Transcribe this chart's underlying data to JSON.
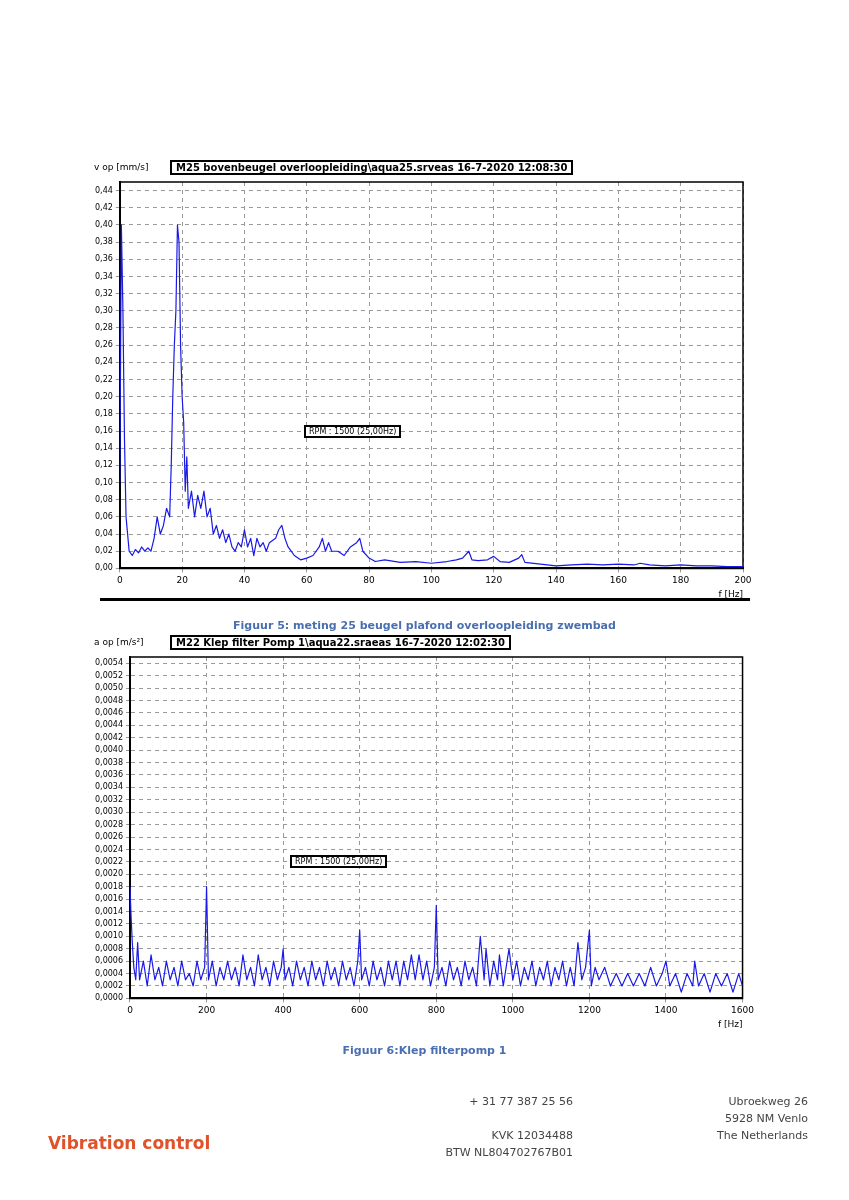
{
  "chart_data": [
    {
      "type": "line",
      "title": "M25 bovenbeugel overloopleiding\\aqua25.srveas 16-7-2020 12:08:30",
      "xlabel": "f [Hz]",
      "ylabel": "v op [mm/s]",
      "annotations": [
        "RPM : 1500 (25,00Hz)",
        "Figuur 5: meting 25 beugel plafond overloopleiding zwembad"
      ],
      "xlim": [
        0,
        200
      ],
      "xticks": [
        0,
        20,
        40,
        60,
        80,
        100,
        120,
        140,
        160,
        180,
        200
      ],
      "ylim": [
        0,
        0.45
      ],
      "yticks": [
        {
          "value": 0,
          "label": "0,00"
        },
        {
          "value": 0.02,
          "label": "0,02"
        },
        {
          "value": 0.04,
          "label": "0,04"
        },
        {
          "value": 0.06,
          "label": "0,06"
        },
        {
          "value": 0.08,
          "label": "0,08"
        },
        {
          "value": 0.1,
          "label": "0,10"
        },
        {
          "value": 0.12,
          "label": "0,12"
        },
        {
          "value": 0.14,
          "label": "0,14"
        },
        {
          "value": 0.16,
          "label": "0,16"
        },
        {
          "value": 0.18,
          "label": "0,18"
        },
        {
          "value": 0.2,
          "label": "0,20"
        },
        {
          "value": 0.22,
          "label": "0,22"
        },
        {
          "value": 0.24,
          "label": "0,24"
        },
        {
          "value": 0.26,
          "label": "0,26"
        },
        {
          "value": 0.28,
          "label": "0,28"
        },
        {
          "value": 0.3,
          "label": "0,30"
        },
        {
          "value": 0.32,
          "label": "0,32"
        },
        {
          "value": 0.34,
          "label": "0,34"
        },
        {
          "value": 0.36,
          "label": "0,36"
        },
        {
          "value": 0.38,
          "label": "0,38"
        },
        {
          "value": 0.4,
          "label": "0,40"
        },
        {
          "value": 0.42,
          "label": "0,42"
        },
        {
          "value": 0.44,
          "label": "0,44"
        }
      ],
      "grid": true,
      "legend": false,
      "marker": "none",
      "line_style": "solid",
      "series": [
        {
          "color": "#1a1ae6",
          "x": [
            0,
            0.5,
            1,
            1.5,
            2,
            3,
            4,
            5,
            6,
            7,
            8,
            9,
            10,
            11,
            12,
            13,
            14,
            15,
            16,
            16.5,
            17,
            17.5,
            18,
            18.5,
            19,
            19.5,
            20,
            20.5,
            21,
            21.5,
            22,
            23,
            24,
            25,
            26,
            27,
            28,
            29,
            30,
            31,
            32,
            33,
            34,
            35,
            36,
            37,
            38,
            39,
            40,
            41,
            42,
            43,
            44,
            45,
            46,
            47,
            48,
            50,
            51,
            52,
            53,
            54,
            55,
            56,
            58,
            60,
            62,
            64,
            65,
            66,
            67,
            68,
            70,
            72,
            74,
            76,
            77,
            78,
            80,
            82,
            85,
            90,
            95,
            100,
            105,
            108,
            110,
            112,
            113,
            115,
            118,
            120,
            122,
            125,
            128,
            129,
            130,
            135,
            140,
            145,
            150,
            155,
            160,
            165,
            167,
            170,
            175,
            180,
            185,
            190,
            195,
            200
          ],
          "values": [
            0.1,
            0.4,
            0.3,
            0.15,
            0.06,
            0.02,
            0.015,
            0.022,
            0.018,
            0.025,
            0.02,
            0.024,
            0.02,
            0.035,
            0.06,
            0.04,
            0.05,
            0.07,
            0.06,
            0.12,
            0.2,
            0.26,
            0.3,
            0.4,
            0.38,
            0.26,
            0.2,
            0.17,
            0.09,
            0.13,
            0.07,
            0.09,
            0.06,
            0.085,
            0.07,
            0.09,
            0.06,
            0.07,
            0.04,
            0.05,
            0.035,
            0.045,
            0.03,
            0.04,
            0.025,
            0.02,
            0.03,
            0.025,
            0.045,
            0.025,
            0.035,
            0.015,
            0.035,
            0.025,
            0.03,
            0.02,
            0.03,
            0.035,
            0.045,
            0.05,
            0.035,
            0.025,
            0.02,
            0.015,
            0.01,
            0.012,
            0.015,
            0.025,
            0.035,
            0.02,
            0.03,
            0.02,
            0.02,
            0.015,
            0.025,
            0.03,
            0.035,
            0.02,
            0.012,
            0.008,
            0.01,
            0.007,
            0.008,
            0.006,
            0.008,
            0.01,
            0.012,
            0.02,
            0.01,
            0.009,
            0.01,
            0.014,
            0.008,
            0.007,
            0.012,
            0.016,
            0.007,
            0.005,
            0.003,
            0.004,
            0.005,
            0.004,
            0.005,
            0.004,
            0.006,
            0.004,
            0.003,
            0.004,
            0.003,
            0.003,
            0.002,
            0.002
          ]
        }
      ]
    },
    {
      "type": "line",
      "title": "M22 Klep filter Pomp 1\\aqua22.sraeas 16-7-2020 12:02:30",
      "xlabel": "f [Hz]",
      "ylabel": "a op [m/s²]",
      "annotations": [
        "RPM : 1500 (25,00Hz)",
        "Figuur 6:Klep filterpomp 1",
        "Vibration control",
        "+ 31 77 387 25 56",
        "KVK 12034488",
        "BTW NL804702767B01",
        "Ubroekweg 26",
        "5928 NM Venlo",
        "The Netherlands"
      ],
      "xlim": [
        0,
        1600
      ],
      "xticks": [
        0,
        200,
        400,
        600,
        800,
        1000,
        1200,
        1400,
        1600
      ],
      "ylim": [
        0,
        0.0055
      ],
      "yticks": [
        {
          "value": 0,
          "label": "0,0000"
        },
        {
          "value": 0.0002,
          "label": "0,0002"
        },
        {
          "value": 0.0004,
          "label": "0,0004"
        },
        {
          "value": 0.0006,
          "label": "0,0006"
        },
        {
          "value": 0.0008,
          "label": "0,0008"
        },
        {
          "value": 0.001,
          "label": "0,0010"
        },
        {
          "value": 0.0012,
          "label": "0,0012"
        },
        {
          "value": 0.0014,
          "label": "0,0014"
        },
        {
          "value": 0.0016,
          "label": "0,0016"
        },
        {
          "value": 0.0018,
          "label": "0,0018"
        },
        {
          "value": 0.002,
          "label": "0,0020"
        },
        {
          "value": 0.0022,
          "label": "0,0022"
        },
        {
          "value": 0.0024,
          "label": "0,0024"
        },
        {
          "value": 0.0026,
          "label": "0,0026"
        },
        {
          "value": 0.0028,
          "label": "0,0028"
        },
        {
          "value": 0.003,
          "label": "0,0030"
        },
        {
          "value": 0.0032,
          "label": "0,0032"
        },
        {
          "value": 0.0034,
          "label": "0,0034"
        },
        {
          "value": 0.0036,
          "label": "0,0036"
        },
        {
          "value": 0.0038,
          "label": "0,0038"
        },
        {
          "value": 0.004,
          "label": "0,0040"
        },
        {
          "value": 0.0042,
          "label": "0,0042"
        },
        {
          "value": 0.0044,
          "label": "0,0044"
        },
        {
          "value": 0.0046,
          "label": "0,0046"
        },
        {
          "value": 0.0048,
          "label": "0,0048"
        },
        {
          "value": 0.005,
          "label": "0,0050"
        },
        {
          "value": 0.0052,
          "label": "0,0052"
        },
        {
          "value": 0.0054,
          "label": "0,0054"
        }
      ],
      "grid": true,
      "legend": false,
      "marker": "none",
      "line_style": "solid",
      "series": [
        {
          "color": "#1a1ae6",
          "x": [
            0,
            3,
            6,
            10,
            15,
            20,
            25,
            35,
            45,
            55,
            65,
            75,
            85,
            95,
            105,
            115,
            125,
            135,
            145,
            155,
            165,
            175,
            185,
            195,
            200,
            205,
            215,
            225,
            235,
            245,
            255,
            265,
            275,
            285,
            295,
            305,
            315,
            325,
            335,
            345,
            355,
            365,
            375,
            385,
            395,
            400,
            405,
            415,
            425,
            435,
            445,
            455,
            465,
            475,
            485,
            495,
            505,
            515,
            525,
            535,
            545,
            555,
            565,
            575,
            585,
            595,
            600,
            605,
            615,
            625,
            635,
            645,
            655,
            665,
            675,
            685,
            695,
            705,
            715,
            725,
            735,
            745,
            755,
            765,
            775,
            785,
            795,
            800,
            805,
            815,
            825,
            835,
            845,
            855,
            865,
            875,
            885,
            895,
            905,
            915,
            925,
            930,
            940,
            950,
            960,
            965,
            975,
            985,
            990,
            1000,
            1010,
            1020,
            1030,
            1040,
            1050,
            1060,
            1070,
            1080,
            1090,
            1100,
            1110,
            1120,
            1130,
            1140,
            1150,
            1160,
            1170,
            1180,
            1190,
            1200,
            1205,
            1215,
            1225,
            1240,
            1255,
            1270,
            1285,
            1300,
            1315,
            1330,
            1345,
            1360,
            1375,
            1390,
            1400,
            1410,
            1425,
            1440,
            1455,
            1470,
            1475,
            1485,
            1500,
            1515,
            1530,
            1545,
            1560,
            1575,
            1590,
            1600
          ],
          "values": [
            0.0018,
            0.0013,
            0.0009,
            0.0005,
            0.0003,
            0.0009,
            0.0003,
            0.0006,
            0.0002,
            0.0007,
            0.0003,
            0.0005,
            0.0002,
            0.0006,
            0.0003,
            0.0005,
            0.0002,
            0.0006,
            0.0003,
            0.0004,
            0.0002,
            0.0006,
            0.0003,
            0.0005,
            0.0018,
            0.0003,
            0.0006,
            0.0002,
            0.0005,
            0.0003,
            0.0006,
            0.0003,
            0.0005,
            0.0002,
            0.0007,
            0.0003,
            0.0005,
            0.0002,
            0.0007,
            0.0003,
            0.0005,
            0.0002,
            0.0006,
            0.0003,
            0.0005,
            0.0008,
            0.0003,
            0.0005,
            0.0002,
            0.0006,
            0.0003,
            0.0005,
            0.0002,
            0.0006,
            0.0003,
            0.0005,
            0.0002,
            0.0006,
            0.0003,
            0.0005,
            0.0002,
            0.0006,
            0.0003,
            0.0005,
            0.0002,
            0.0006,
            0.0011,
            0.0003,
            0.0005,
            0.0002,
            0.0006,
            0.0003,
            0.0005,
            0.0002,
            0.0006,
            0.0003,
            0.0006,
            0.0002,
            0.0006,
            0.0003,
            0.0007,
            0.0003,
            0.0007,
            0.0003,
            0.0006,
            0.0002,
            0.0005,
            0.0015,
            0.0003,
            0.0005,
            0.0002,
            0.0006,
            0.0003,
            0.0005,
            0.0002,
            0.0006,
            0.0003,
            0.0005,
            0.0002,
            0.001,
            0.0003,
            0.0008,
            0.0002,
            0.0006,
            0.0003,
            0.0007,
            0.0002,
            0.0006,
            0.0008,
            0.0003,
            0.0006,
            0.0002,
            0.0005,
            0.0003,
            0.0006,
            0.0002,
            0.0005,
            0.0003,
            0.0006,
            0.0002,
            0.0005,
            0.0003,
            0.0006,
            0.0002,
            0.0005,
            0.0002,
            0.0009,
            0.0003,
            0.0005,
            0.0011,
            0.0002,
            0.0005,
            0.0003,
            0.0005,
            0.0002,
            0.0004,
            0.0002,
            0.0004,
            0.0002,
            0.0004,
            0.0002,
            0.0005,
            0.0002,
            0.0004,
            0.0006,
            0.0002,
            0.0004,
            0.0001,
            0.0004,
            0.0002,
            0.0006,
            0.0002,
            0.0004,
            0.0001,
            0.0004,
            0.0002,
            0.0004,
            0.0001,
            0.0004,
            0.0002
          ]
        }
      ]
    }
  ]
}
